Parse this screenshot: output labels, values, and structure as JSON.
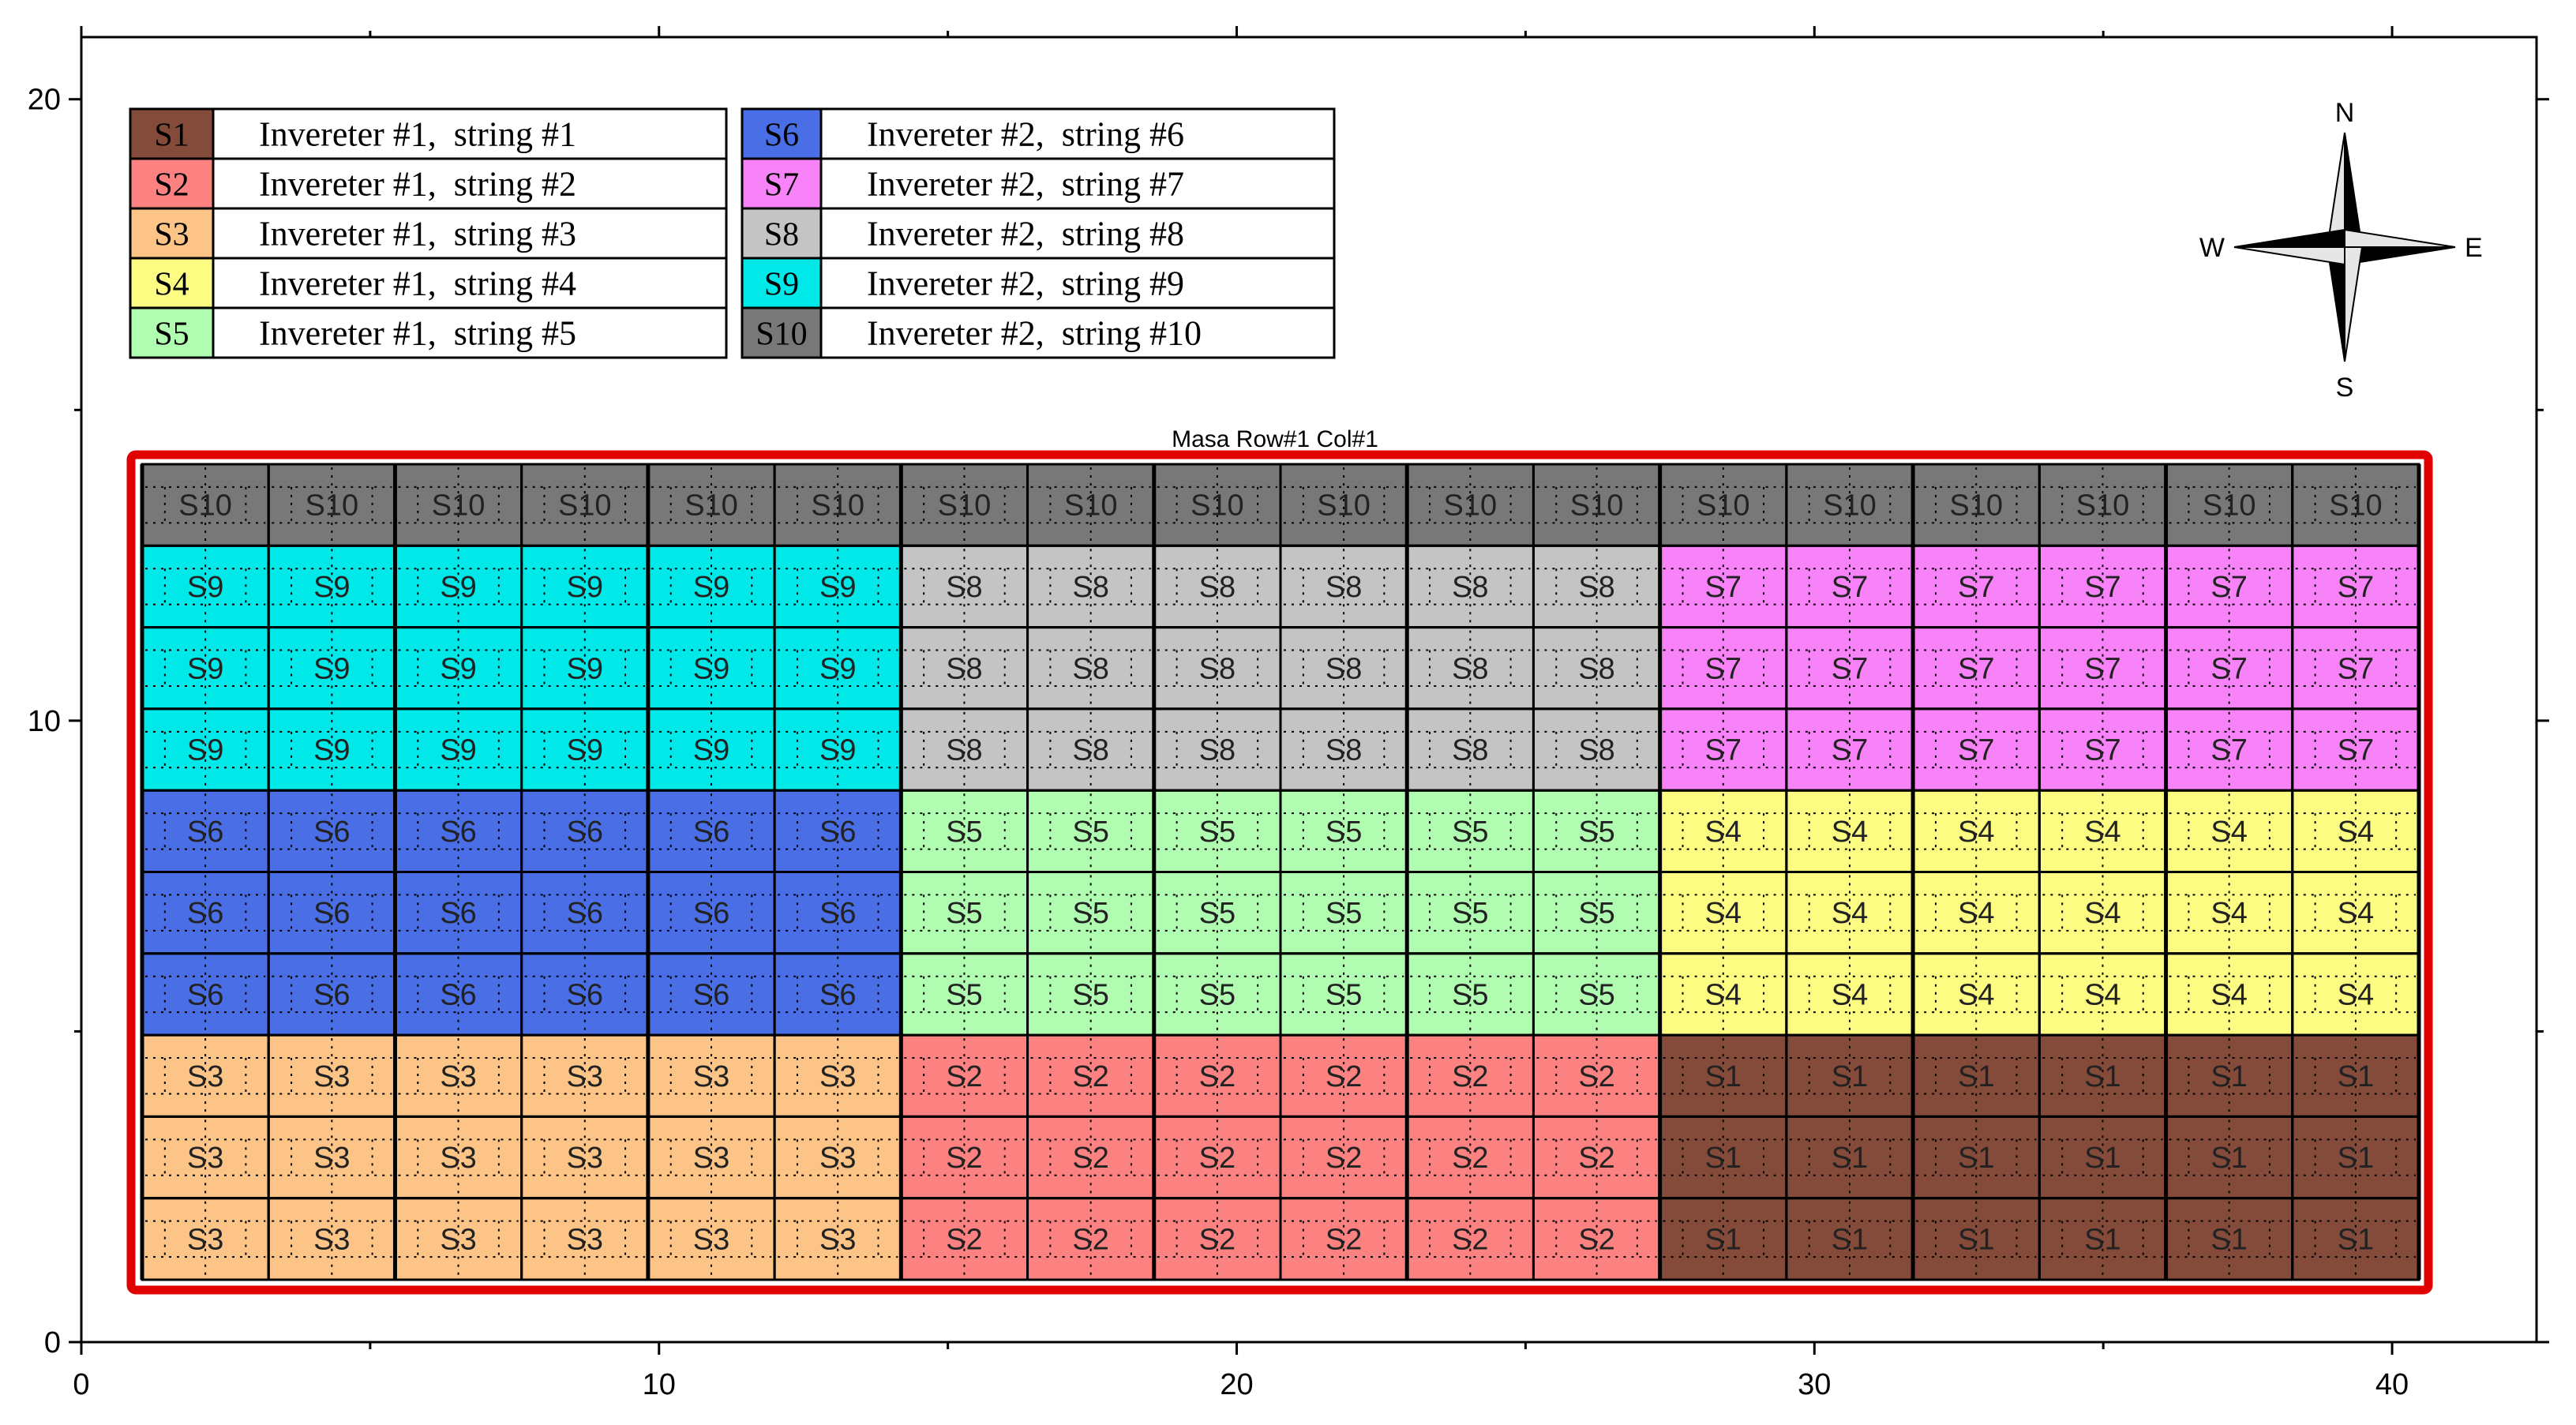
{
  "plot": {
    "title": "Masa Row#1 Col#1",
    "x_range": [
      0,
      42.5
    ],
    "y_range": [
      0,
      21
    ],
    "x_ticks": [
      "0",
      "10",
      "20",
      "30",
      "40"
    ],
    "x_tick_values": [
      0,
      10,
      20,
      30,
      40
    ],
    "y_ticks": [
      "0",
      "10",
      "20"
    ],
    "y_tick_values": [
      0,
      10,
      20
    ],
    "boundary_color": "#e00000"
  },
  "legend": {
    "left": [
      {
        "code": "S1",
        "label": "Invereter #1,  string #1",
        "color": "#844a3a"
      },
      {
        "code": "S2",
        "label": "Invereter #1,  string #2",
        "color": "#fc8282"
      },
      {
        "code": "S3",
        "label": "Invereter #1,  string #3",
        "color": "#fcc486"
      },
      {
        "code": "S4",
        "label": "Invereter #1,  string #4",
        "color": "#fcfc82"
      },
      {
        "code": "S5",
        "label": "Invereter #1,  string #5",
        "color": "#b0fcb0"
      }
    ],
    "right": [
      {
        "code": "S6",
        "label": "Invereter #2,  string #6",
        "color": "#4a6ee6"
      },
      {
        "code": "S7",
        "label": "Invereter #2,  string #7",
        "color": "#f882f8"
      },
      {
        "code": "S8",
        "label": "Invereter #2,  string #8",
        "color": "#c4c4c4"
      },
      {
        "code": "S9",
        "label": "Invereter #2,  string #9",
        "color": "#00e8e8"
      },
      {
        "code": "S10",
        "label": "Invereter #2,  string #10",
        "color": "#787878"
      }
    ]
  },
  "compass": {
    "n": "N",
    "s": "S",
    "e": "E",
    "w": "W"
  },
  "grid": {
    "columns": 18,
    "group_columns": 6,
    "rows": [
      {
        "strings": [
          "S10",
          "S10",
          "S10"
        ]
      },
      {
        "strings": [
          "S9",
          "S8",
          "S7"
        ]
      },
      {
        "strings": [
          "S9",
          "S8",
          "S7"
        ]
      },
      {
        "strings": [
          "S9",
          "S8",
          "S7"
        ]
      },
      {
        "strings": [
          "S6",
          "S5",
          "S4"
        ]
      },
      {
        "strings": [
          "S6",
          "S5",
          "S4"
        ]
      },
      {
        "strings": [
          "S6",
          "S5",
          "S4"
        ]
      },
      {
        "strings": [
          "S3",
          "S2",
          "S1"
        ]
      },
      {
        "strings": [
          "S3",
          "S2",
          "S1"
        ]
      },
      {
        "strings": [
          "S3",
          "S2",
          "S1"
        ]
      }
    ]
  }
}
